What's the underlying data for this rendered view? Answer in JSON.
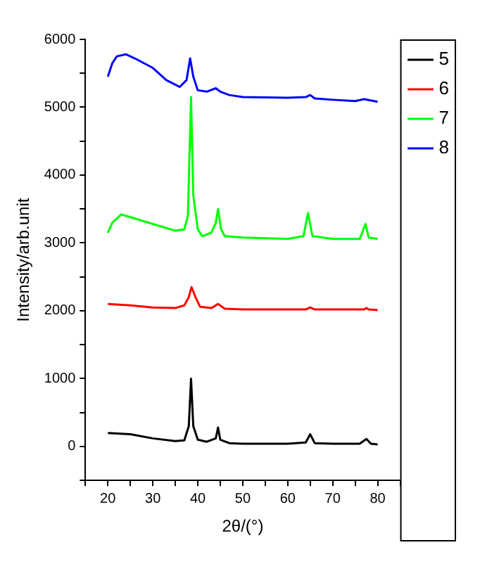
{
  "chart_data": {
    "type": "line",
    "xlabel": "2θ/(°)",
    "ylabel": "Intensity/arb.unit",
    "xlim": [
      15,
      85
    ],
    "xticks": [
      {
        "value": 15,
        "label": null
      },
      20,
      {
        "value": 25,
        "label": null
      },
      30,
      {
        "value": 35,
        "label": null
      },
      40,
      {
        "value": 45,
        "label": null
      },
      50,
      {
        "value": 55,
        "label": null
      },
      60,
      {
        "value": 65,
        "label": null
      },
      70,
      {
        "value": 75,
        "label": null
      },
      80,
      {
        "value": 85,
        "label": null
      }
    ],
    "ylim": [
      -500,
      6000
    ],
    "yticks": [
      {
        "value": -500,
        "label": null
      },
      0,
      {
        "value": 500,
        "label": null
      },
      1000,
      {
        "value": 1500,
        "label": null
      },
      2000,
      {
        "value": 2500,
        "label": null
      },
      3000,
      {
        "value": 3500,
        "label": null
      },
      4000,
      {
        "value": 4500,
        "label": null
      },
      5000,
      {
        "value": 5500,
        "label": null
      },
      6000
    ],
    "grid": false,
    "legend": "top right",
    "marker": "none",
    "line_style": "solid",
    "series": [
      {
        "name": "5",
        "color": "#000000",
        "x": [
          20,
          25,
          30,
          35,
          37,
          38,
          38.5,
          39,
          40,
          42,
          44,
          44.5,
          45,
          47,
          50,
          60,
          64,
          65,
          66,
          70,
          76,
          77.5,
          78.5,
          80
        ],
        "values": [
          200,
          180,
          120,
          80,
          90,
          300,
          1000,
          300,
          100,
          70,
          120,
          280,
          100,
          50,
          40,
          40,
          60,
          180,
          50,
          40,
          40,
          110,
          40,
          30
        ]
      },
      {
        "name": "6",
        "color": "#ff0000",
        "x": [
          20,
          25,
          30,
          35,
          37,
          38,
          38.6,
          39.5,
          40.5,
          43,
          44.5,
          46,
          50,
          64,
          65,
          66,
          77,
          77.5,
          78,
          80
        ],
        "values": [
          2100,
          2080,
          2050,
          2040,
          2080,
          2200,
          2350,
          2200,
          2060,
          2040,
          2100,
          2030,
          2020,
          2020,
          2050,
          2020,
          2020,
          2040,
          2020,
          2010
        ]
      },
      {
        "name": "7",
        "color": "#00ff00",
        "x": [
          20,
          21,
          23,
          25,
          30,
          35,
          37,
          37.8,
          38.5,
          39,
          40,
          41,
          43,
          44,
          44.5,
          45.2,
          46,
          50,
          60,
          63.5,
          64.5,
          65.5,
          70,
          76,
          77.3,
          78,
          80
        ],
        "values": [
          3150,
          3300,
          3420,
          3380,
          3280,
          3180,
          3200,
          3400,
          5150,
          3700,
          3200,
          3100,
          3150,
          3300,
          3500,
          3200,
          3100,
          3080,
          3060,
          3100,
          3440,
          3100,
          3060,
          3060,
          3280,
          3080,
          3060
        ]
      },
      {
        "name": "8",
        "color": "#0000ff",
        "x": [
          20,
          21,
          22,
          24,
          26,
          30,
          33,
          36,
          37.5,
          38.3,
          39,
          40,
          42,
          44,
          45,
          47,
          50,
          60,
          64,
          65,
          66,
          70,
          75,
          77,
          80
        ],
        "values": [
          5450,
          5650,
          5750,
          5780,
          5720,
          5580,
          5400,
          5300,
          5400,
          5720,
          5450,
          5250,
          5230,
          5280,
          5230,
          5180,
          5150,
          5140,
          5150,
          5180,
          5130,
          5110,
          5090,
          5120,
          5080
        ]
      }
    ]
  }
}
